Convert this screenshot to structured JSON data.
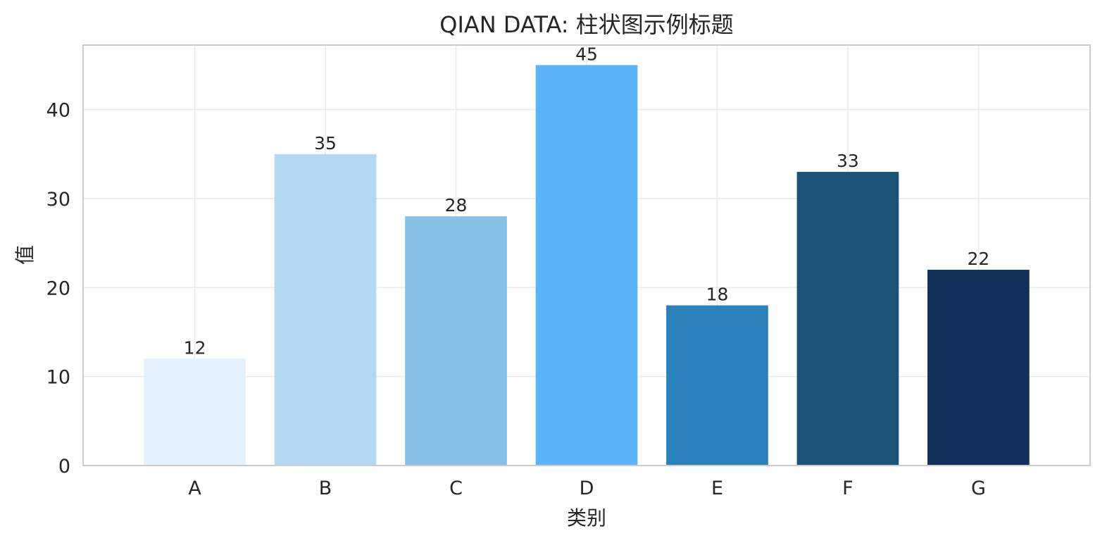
{
  "chart_data": {
    "type": "bar",
    "title": "QIAN DATA: 柱状图示例标题",
    "xlabel": "类别",
    "ylabel": "值",
    "categories": [
      "A",
      "B",
      "C",
      "D",
      "E",
      "F",
      "G"
    ],
    "values": [
      12,
      35,
      28,
      45,
      18,
      33,
      22
    ],
    "colors": [
      "#e6f2fb",
      "#b3d8f1",
      "#88c1e8",
      "#5ab3f8",
      "#2b81b9",
      "#1b5275",
      "#11305a"
    ],
    "ylim": [
      0,
      47.25
    ],
    "yticks": [
      0,
      10,
      20,
      30,
      40
    ],
    "grid": true,
    "legend": "none",
    "data_labels": true
  }
}
